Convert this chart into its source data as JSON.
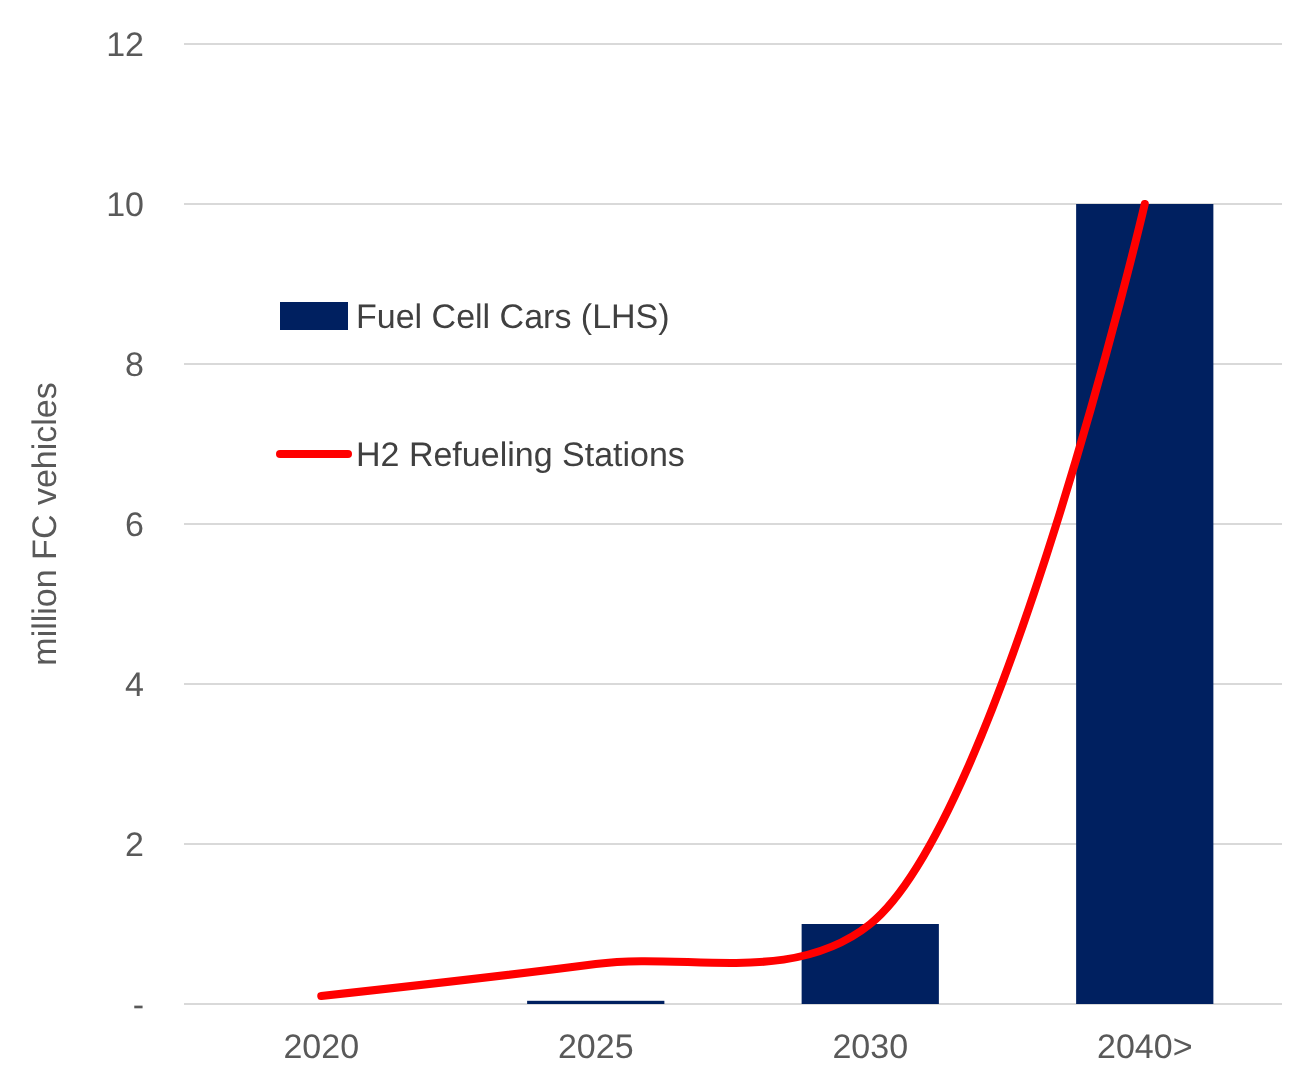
{
  "chart_data": {
    "type": "bar",
    "ylabel": "million FC vehicles",
    "categories": [
      "2020",
      "2025",
      "2030",
      "2040>"
    ],
    "series": [
      {
        "name": "Fuel Cell Cars (LHS)",
        "color": "#002060",
        "values": [
          0,
          0.04,
          1,
          10
        ]
      },
      {
        "name": "H2 Refueling Stations",
        "type": "line",
        "color": "#ff0000",
        "values": [
          0.1,
          0.5,
          1.0,
          10
        ]
      }
    ],
    "ylim": [
      0,
      12
    ],
    "yticks": [
      {
        "value": 0,
        "label": "-"
      },
      2,
      4,
      6,
      8,
      10,
      12
    ],
    "grid": "y",
    "legend": "top left"
  }
}
